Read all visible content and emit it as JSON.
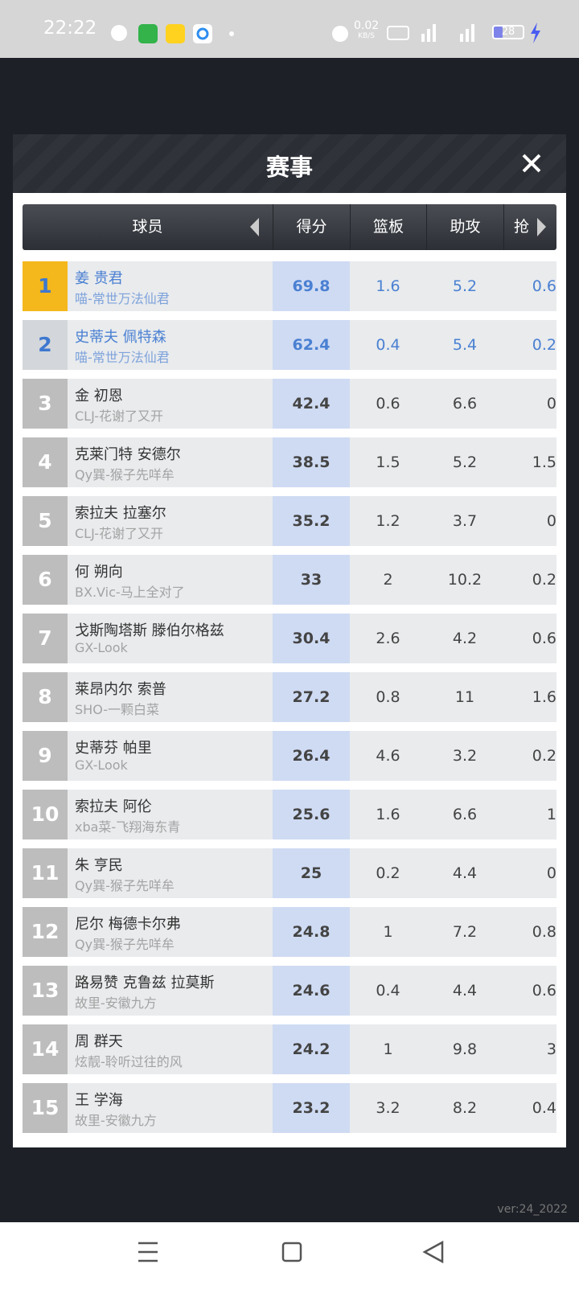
{
  "status_bar": {
    "time": "22:22",
    "net_speed": "0.02",
    "net_unit": "KB/S",
    "battery": "28"
  },
  "modal": {
    "title": "赛事",
    "columns": [
      "球员",
      "得分",
      "篮板",
      "助攻",
      "抢"
    ],
    "rows": [
      {
        "rank": "1",
        "name": "姜 贵君",
        "team": "喵-常世万法仙君",
        "cells": [
          "69.8",
          "1.6",
          "5.2",
          "0.6"
        ]
      },
      {
        "rank": "2",
        "name": "史蒂夫 佩特森",
        "team": "喵-常世万法仙君",
        "cells": [
          "62.4",
          "0.4",
          "5.4",
          "0.2"
        ]
      },
      {
        "rank": "3",
        "name": "金 初恩",
        "team": "CLJ-花谢了又开",
        "cells": [
          "42.4",
          "0.6",
          "6.6",
          "0"
        ]
      },
      {
        "rank": "4",
        "name": "克莱门特 安德尔",
        "team": "Qy巽-猴子先咩牟",
        "cells": [
          "38.5",
          "1.5",
          "5.2",
          "1.5"
        ]
      },
      {
        "rank": "5",
        "name": "索拉夫 拉塞尔",
        "team": "CLJ-花谢了又开",
        "cells": [
          "35.2",
          "1.2",
          "3.7",
          "0"
        ]
      },
      {
        "rank": "6",
        "name": "何 朔向",
        "team": "BX.Vic-马上全对了",
        "cells": [
          "33",
          "2",
          "10.2",
          "0.2"
        ]
      },
      {
        "rank": "7",
        "name": "戈斯陶塔斯 滕伯尔格兹",
        "team": "GX-Look",
        "cells": [
          "30.4",
          "2.6",
          "4.2",
          "0.6"
        ]
      },
      {
        "rank": "8",
        "name": "莱昂内尔 索普",
        "team": "SHO-一颗白菜",
        "cells": [
          "27.2",
          "0.8",
          "11",
          "1.6"
        ]
      },
      {
        "rank": "9",
        "name": "史蒂芬 帕里",
        "team": "GX-Look",
        "cells": [
          "26.4",
          "4.6",
          "3.2",
          "0.2"
        ]
      },
      {
        "rank": "10",
        "name": "索拉夫 阿伦",
        "team": "xba菜-飞翔海东青",
        "cells": [
          "25.6",
          "1.6",
          "6.6",
          "1"
        ]
      },
      {
        "rank": "11",
        "name": "朱 亨民",
        "team": "Qy巽-猴子先咩牟",
        "cells": [
          "25",
          "0.2",
          "4.4",
          "0"
        ]
      },
      {
        "rank": "12",
        "name": "尼尔 梅德卡尔弗",
        "team": "Qy巽-猴子先咩牟",
        "cells": [
          "24.8",
          "1",
          "7.2",
          "0.8"
        ]
      },
      {
        "rank": "13",
        "name": "路易赞 克鲁兹 拉莫斯",
        "team": "故里-安徽九方",
        "cells": [
          "24.6",
          "0.4",
          "4.4",
          "0.6"
        ]
      },
      {
        "rank": "14",
        "name": "周 群天",
        "team": "炫靓-聆听过往的风",
        "cells": [
          "24.2",
          "1",
          "9.8",
          "3"
        ]
      },
      {
        "rank": "15",
        "name": "王 学海",
        "team": "故里-安徽九方",
        "cells": [
          "23.2",
          "3.2",
          "8.2",
          "0.4"
        ]
      }
    ]
  },
  "version": "ver:24_2022"
}
